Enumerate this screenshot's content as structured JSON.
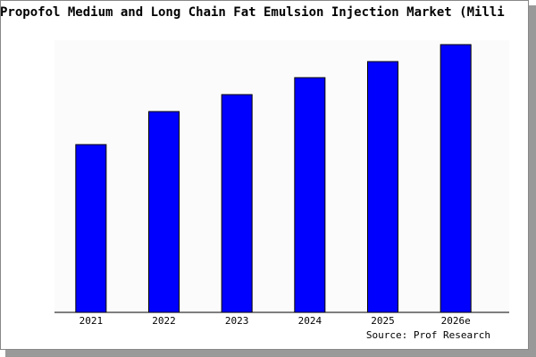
{
  "chart_data": {
    "type": "bar",
    "title": "Propofol Medium and Long Chain Fat Emulsion Injection Market (Milli",
    "categories": [
      "2021",
      "2022",
      "2023",
      "2024",
      "2025",
      "2026e"
    ],
    "values": [
      188,
      225,
      244,
      263,
      281,
      300
    ],
    "color": "#0000ff",
    "source": "Source: Prof Research"
  }
}
